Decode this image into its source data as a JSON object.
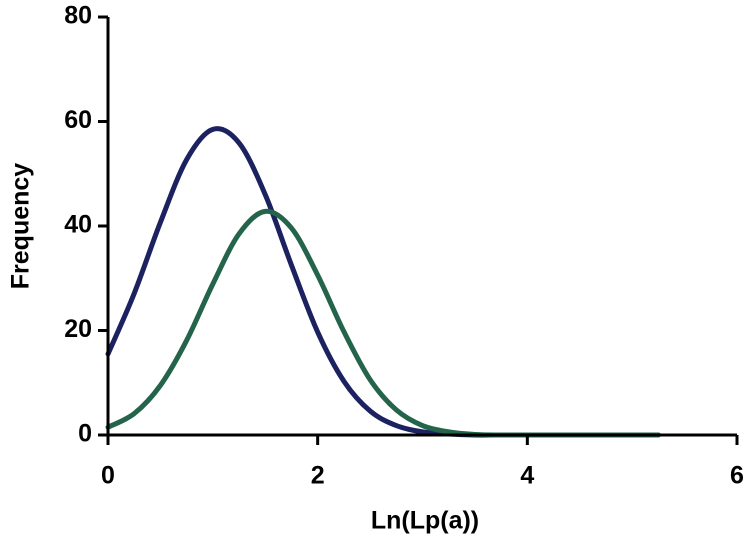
{
  "chart_data": {
    "type": "line",
    "x_label": "Ln(Lp(a))",
    "y_label": "Frequency",
    "x": [
      0,
      0.25,
      0.5,
      0.75,
      1,
      1.25,
      1.5,
      1.75,
      2,
      2.25,
      2.5,
      2.75,
      3,
      3.25,
      3.5,
      3.75,
      4,
      4.25,
      4.5,
      4.75,
      5,
      5.25
    ],
    "series": [
      {
        "color": "#1c2260",
        "values": [
          15.5,
          27.1,
          40.7,
          52.7,
          58.5,
          55.9,
          46.0,
          32.5,
          19.7,
          10.3,
          4.6,
          1.8,
          0.6,
          0.2,
          0,
          0,
          0,
          0,
          0,
          0,
          0,
          0
        ]
      },
      {
        "color": "#23644a",
        "values": [
          1.5,
          4.1,
          9.5,
          18.1,
          28.9,
          38.5,
          42.8,
          39.6,
          30.6,
          19.8,
          10.6,
          4.8,
          1.8,
          0.6,
          0.1,
          0,
          0,
          0,
          0,
          0,
          0,
          0
        ]
      }
    ],
    "xlim": [
      0,
      6
    ],
    "xticks": [
      0,
      2,
      4,
      6
    ],
    "ylim": [
      0,
      80
    ],
    "yticks": [
      0,
      20,
      40,
      60,
      80
    ],
    "grid": false
  }
}
